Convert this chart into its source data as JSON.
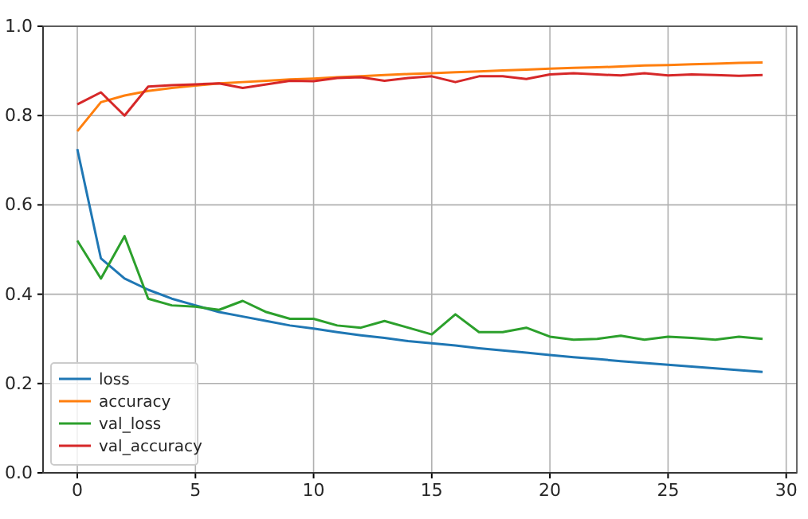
{
  "chart_data": {
    "type": "line",
    "x": [
      0,
      1,
      2,
      3,
      4,
      5,
      6,
      7,
      8,
      9,
      10,
      11,
      12,
      13,
      14,
      15,
      16,
      17,
      18,
      19,
      20,
      21,
      22,
      23,
      24,
      25,
      26,
      27,
      28,
      29
    ],
    "series": [
      {
        "name": "loss",
        "color": "#1f77b4",
        "values": [
          0.725,
          0.48,
          0.435,
          0.41,
          0.39,
          0.375,
          0.36,
          0.35,
          0.34,
          0.33,
          0.323,
          0.315,
          0.308,
          0.302,
          0.295,
          0.29,
          0.285,
          0.279,
          0.274,
          0.269,
          0.264,
          0.259,
          0.255,
          0.25,
          0.246,
          0.242,
          0.238,
          0.234,
          0.23,
          0.226
        ]
      },
      {
        "name": "accuracy",
        "color": "#ff7f0e",
        "values": [
          0.765,
          0.83,
          0.845,
          0.855,
          0.862,
          0.867,
          0.872,
          0.875,
          0.878,
          0.881,
          0.883,
          0.886,
          0.888,
          0.891,
          0.893,
          0.895,
          0.897,
          0.899,
          0.901,
          0.903,
          0.905,
          0.907,
          0.908,
          0.91,
          0.912,
          0.913,
          0.915,
          0.916,
          0.918,
          0.919
        ]
      },
      {
        "name": "val_loss",
        "color": "#2ca02c",
        "values": [
          0.52,
          0.435,
          0.53,
          0.39,
          0.375,
          0.372,
          0.365,
          0.385,
          0.36,
          0.345,
          0.345,
          0.33,
          0.325,
          0.34,
          0.325,
          0.31,
          0.355,
          0.315,
          0.315,
          0.325,
          0.305,
          0.298,
          0.3,
          0.307,
          0.298,
          0.305,
          0.302,
          0.298,
          0.305,
          0.3
        ]
      },
      {
        "name": "val_accuracy",
        "color": "#d62728",
        "values": [
          0.825,
          0.852,
          0.8,
          0.865,
          0.868,
          0.87,
          0.872,
          0.862,
          0.87,
          0.878,
          0.877,
          0.884,
          0.886,
          0.878,
          0.884,
          0.888,
          0.875,
          0.888,
          0.888,
          0.882,
          0.892,
          0.895,
          0.892,
          0.89,
          0.895,
          0.89,
          0.892,
          0.891,
          0.889,
          0.891
        ]
      }
    ],
    "xlim": [
      -1.45,
      30.45
    ],
    "xticks": [
      0,
      5,
      10,
      15,
      20,
      25,
      30
    ],
    "ylim": [
      0,
      1
    ],
    "yticks": [
      {
        "value": 0,
        "label": "0.0"
      },
      {
        "value": 0.2,
        "label": "0.2"
      },
      {
        "value": 0.4,
        "label": "0.4"
      },
      {
        "value": 0.6,
        "label": "0.6"
      },
      {
        "value": 0.8,
        "label": "0.8"
      },
      {
        "value": 1,
        "label": "1.0"
      }
    ],
    "grid": true,
    "legend": "bottom left",
    "marker": "none",
    "line_style": "solid"
  }
}
